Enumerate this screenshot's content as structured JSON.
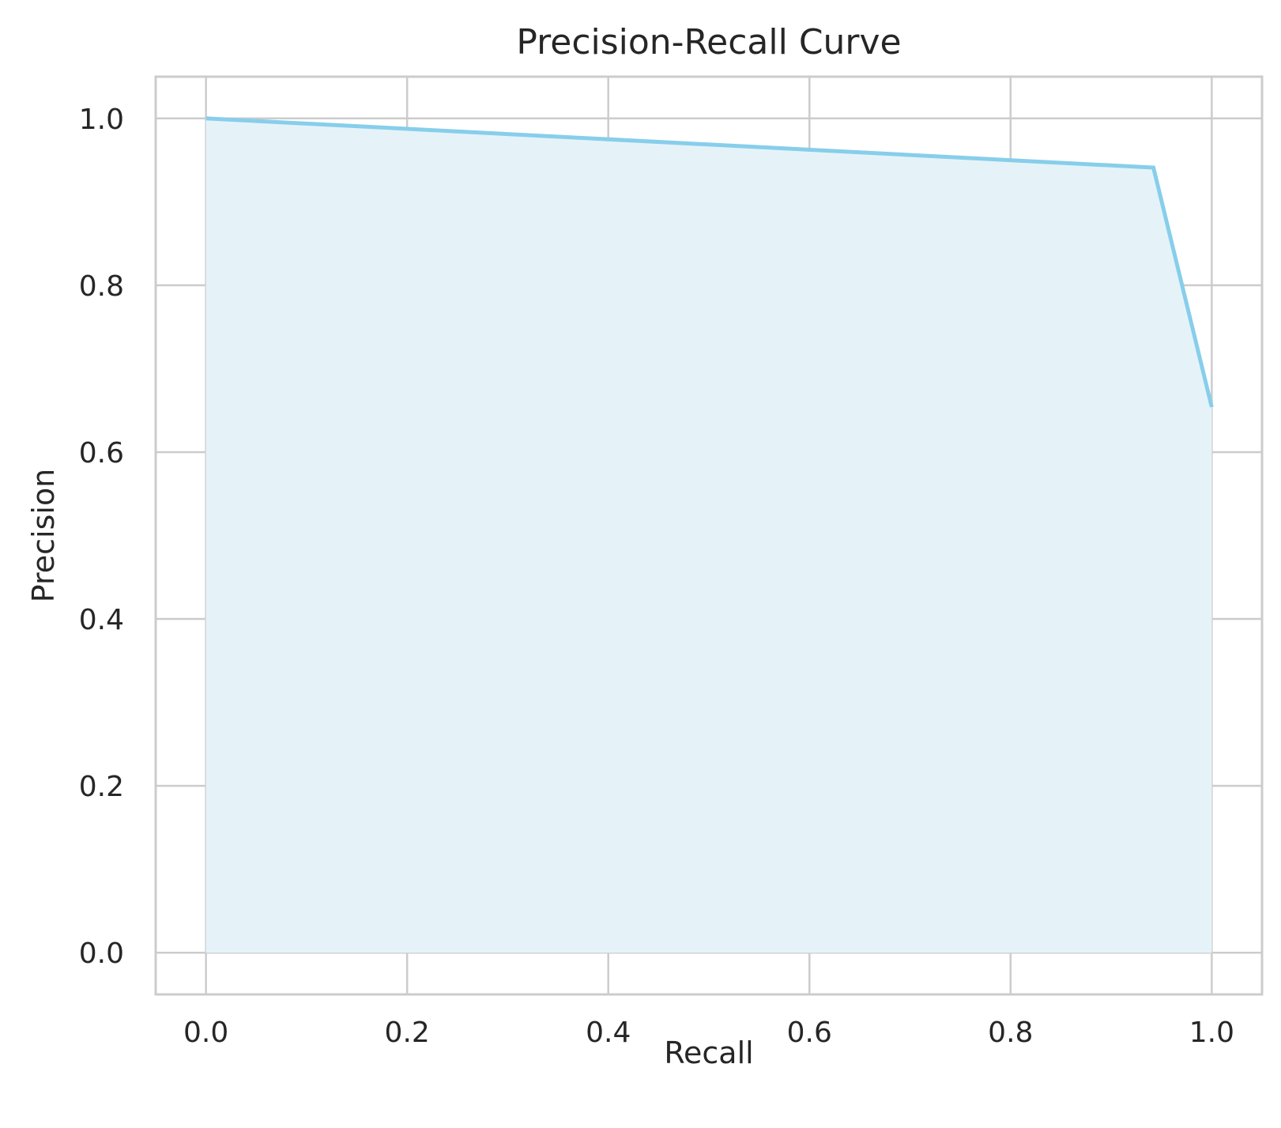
{
  "chart_data": {
    "type": "area",
    "title": "Precision-Recall Curve",
    "xlabel": "Recall",
    "ylabel": "Precision",
    "xlim": [
      -0.05,
      1.05
    ],
    "ylim": [
      -0.05,
      1.05
    ],
    "xticks": [
      0.0,
      0.2,
      0.4,
      0.6,
      0.8,
      1.0
    ],
    "yticks": [
      0.0,
      0.2,
      0.4,
      0.6,
      0.8,
      1.0
    ],
    "xtick_labels": [
      "0.0",
      "0.2",
      "0.4",
      "0.6",
      "0.8",
      "1.0"
    ],
    "ytick_labels": [
      "0.0",
      "0.2",
      "0.4",
      "0.6",
      "0.8",
      "1.0"
    ],
    "grid": true,
    "series": [
      {
        "x": [
          0.0,
          0.942,
          1.0
        ],
        "y": [
          1.0,
          0.941,
          0.654
        ],
        "fill_to_zero": true,
        "line_color": "#87ceeb",
        "fill_color": "#e5f3f9"
      }
    ]
  }
}
